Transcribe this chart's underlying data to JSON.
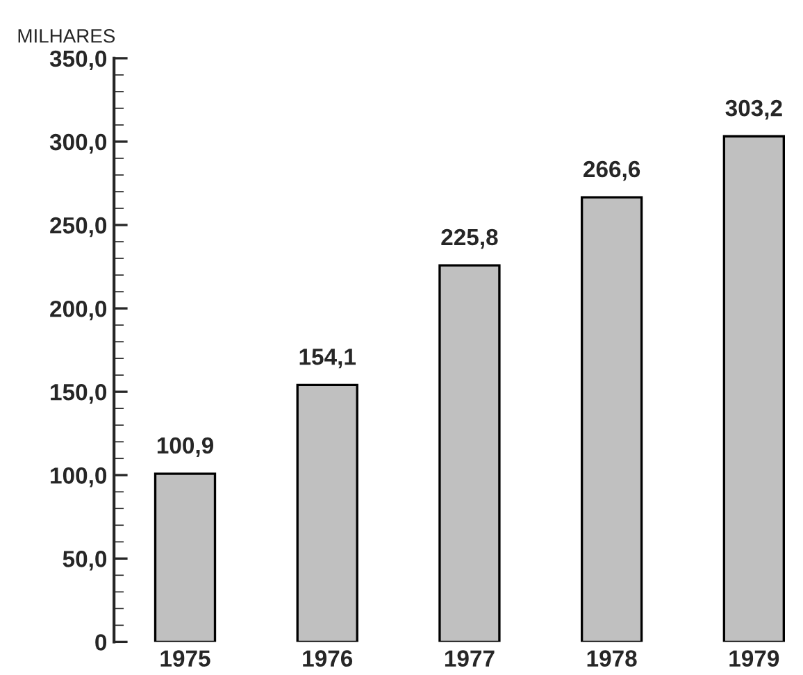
{
  "chart_data": {
    "type": "bar",
    "ylabel": "MILHARES",
    "categories": [
      "1975",
      "1976",
      "1977",
      "1978",
      "1979"
    ],
    "values": [
      100.9,
      154.1,
      225.8,
      266.6,
      303.2
    ],
    "value_labels": [
      "100,9",
      "154,1",
      "225,8",
      "266,6",
      "303,2"
    ],
    "color": "#c0c0c0",
    "ylim": [
      0,
      350
    ],
    "yticks": [
      {
        "value": 0,
        "label": "0"
      },
      {
        "value": 50,
        "label": "50,0"
      },
      {
        "value": 100,
        "label": "100,0"
      },
      {
        "value": 150,
        "label": "150,0"
      },
      {
        "value": 200,
        "label": "200,0"
      },
      {
        "value": 250,
        "label": "250,0"
      },
      {
        "value": 300,
        "label": "300,0"
      },
      {
        "value": 350,
        "label": "350,0"
      }
    ],
    "grid": false,
    "legend": false
  }
}
